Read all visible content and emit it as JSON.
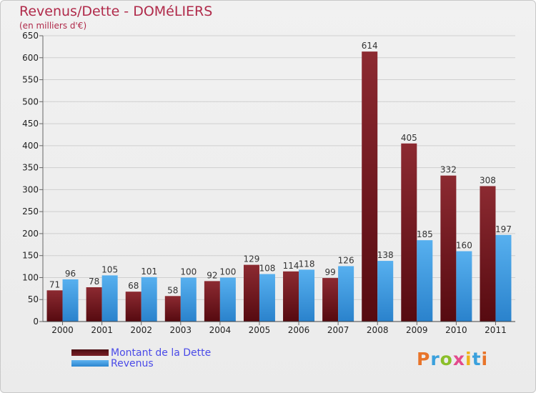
{
  "title": "Revenus/Dette - DOMéLIERS",
  "subtitle": "(en milliers d'€)",
  "logo_text": "Proxiti",
  "colors": {
    "dette": "#7a1f25",
    "revenus": "#3b9ae1",
    "title": "#b02a4a"
  },
  "chart_data": {
    "type": "bar",
    "title": "Revenus/Dette - DOMéLIERS",
    "ylabel": "(en milliers d'€)",
    "xlabel": "",
    "ylim": [
      0,
      650
    ],
    "yticks": [
      0,
      50,
      100,
      150,
      200,
      250,
      300,
      350,
      400,
      450,
      500,
      550,
      600,
      650
    ],
    "grid": true,
    "legend_position": "bottom-left",
    "categories": [
      "2000",
      "2001",
      "2002",
      "2003",
      "2004",
      "2005",
      "2006",
      "2007",
      "2008",
      "2009",
      "2010",
      "2011"
    ],
    "series": [
      {
        "name": "Montant de la Dette",
        "values": [
          71,
          78,
          68,
          58,
          92,
          129,
          114,
          99,
          614,
          405,
          332,
          308
        ]
      },
      {
        "name": "Revenus",
        "values": [
          96,
          105,
          101,
          100,
          100,
          108,
          118,
          126,
          138,
          185,
          160,
          197
        ]
      }
    ]
  }
}
